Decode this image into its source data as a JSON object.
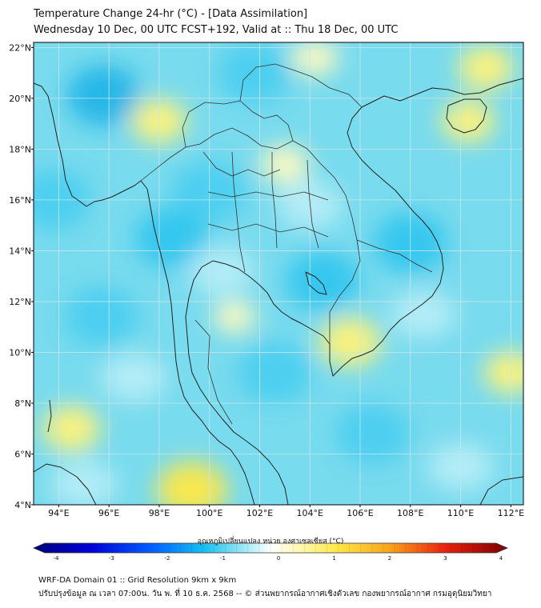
{
  "title": {
    "line1": "Temperature Change 24-hr (°C) - [Data Assimilation]",
    "line2": "Wednesday 10 Dec, 00 UTC FCST+192, Valid at :: Thu 18 Dec, 00 UTC"
  },
  "map": {
    "lat_labels": [
      "22°N",
      "20°N",
      "18°N",
      "16°N",
      "14°N",
      "12°N",
      "10°N",
      "8°N",
      "6°N",
      "4°N"
    ],
    "lon_labels": [
      "94°E",
      "96°E",
      "98°E",
      "100°E",
      "102°E",
      "104°E",
      "106°E",
      "108°E",
      "110°E",
      "112°E"
    ],
    "extent": {
      "lon_min": 93,
      "lon_max": 112.5,
      "lat_min": 4,
      "lat_max": 22.2
    },
    "warm_patches": [
      {
        "lon": 99.3,
        "lat": 4.6,
        "value": 1.9
      },
      {
        "lon": 94.5,
        "lat": 7.0,
        "value": 1.3
      },
      {
        "lon": 105.6,
        "lat": 10.4,
        "value": 1.5
      },
      {
        "lon": 111.0,
        "lat": 21.2,
        "value": 1.2
      },
      {
        "lon": 110.3,
        "lat": 19.1,
        "value": 1.1
      },
      {
        "lon": 98.0,
        "lat": 19.1,
        "value": 1.2
      },
      {
        "lon": 103.0,
        "lat": 17.4,
        "value": 0.9
      },
      {
        "lon": 112.0,
        "lat": 9.2,
        "value": 1.1
      },
      {
        "lon": 104.2,
        "lat": 21.6,
        "value": 0.8
      },
      {
        "lon": 101.0,
        "lat": 11.4,
        "value": 0.6
      }
    ],
    "cold_patches": [
      {
        "lon": 95.8,
        "lat": 20.1,
        "value": -2.3
      },
      {
        "lon": 108.0,
        "lat": 14.3,
        "value": -2.0
      },
      {
        "lon": 104.5,
        "lat": 12.8,
        "value": -1.8
      },
      {
        "lon": 100.0,
        "lat": 16.3,
        "value": -1.6
      },
      {
        "lon": 98.5,
        "lat": 14.5,
        "value": -1.9
      },
      {
        "lon": 102.6,
        "lat": 9.2,
        "value": -1.7
      },
      {
        "lon": 93.8,
        "lat": 16.0,
        "value": -1.5
      },
      {
        "lon": 106.5,
        "lat": 6.8,
        "value": -1.6
      },
      {
        "lon": 101.8,
        "lat": 21.0,
        "value": -1.2
      },
      {
        "lon": 95.7,
        "lat": 11.4,
        "value": -1.3
      }
    ]
  },
  "colorbar": {
    "title": "อุณหภูมิเปลี่ยนแปลง หน่วย องศาเซลเซียส (°C)",
    "ticks": [
      "-4",
      "-3",
      "-2",
      "-1",
      "0",
      "1",
      "2",
      "3",
      "4"
    ],
    "min": -4,
    "max": 4
  },
  "footer": {
    "line1": "WRF-DA Domain 01 :: Grid Resolution 9km x 9km",
    "line2": "ปรับปรุงข้อมูล ณ เวลา 07:00น. วัน พ. ที่ 10 ธ.ค. 2568 -- © ส่วนพยากรณ์อากาศเชิงตัวเลข กองพยากรณ์อากาศ กรมอุตุนิยมวิทยา"
  },
  "colors": {
    "base_field": "#6fd8ec",
    "coast": "#222222",
    "grid": "#c8e6ea"
  }
}
